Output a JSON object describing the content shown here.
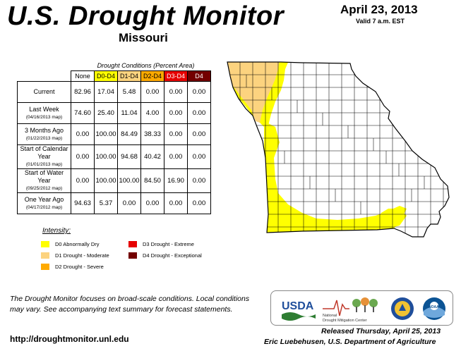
{
  "header": {
    "title": "U.S. Drought Monitor",
    "state": "Missouri",
    "date": "April 23, 2013",
    "valid": "Valid 7 a.m. EST"
  },
  "table": {
    "caption": "Drought Conditions (Percent Area)",
    "columns": [
      "None",
      "D0-D4",
      "D1-D4",
      "D2-D4",
      "D3-D4",
      "D4"
    ],
    "column_colors": [
      "#ffffff",
      "#ffff00",
      "#fcd37f",
      "#ffaa00",
      "#e60000",
      "#730000"
    ],
    "column_text_colors": [
      "#000000",
      "#000000",
      "#000000",
      "#000000",
      "#ffffff",
      "#ffffff"
    ],
    "rows": [
      {
        "label": "Current",
        "sub": "",
        "values": [
          "82.96",
          "17.04",
          "5.48",
          "0.00",
          "0.00",
          "0.00"
        ]
      },
      {
        "label": "Last Week",
        "sub": "(04/16/2013 map)",
        "values": [
          "74.60",
          "25.40",
          "11.04",
          "4.00",
          "0.00",
          "0.00"
        ]
      },
      {
        "label": "3 Months Ago",
        "sub": "(01/22/2013 map)",
        "values": [
          "0.00",
          "100.00",
          "84.49",
          "38.33",
          "0.00",
          "0.00"
        ]
      },
      {
        "label": "Start of Calendar Year",
        "sub": "(01/01/2013 map)",
        "values": [
          "0.00",
          "100.00",
          "94.68",
          "40.42",
          "0.00",
          "0.00"
        ]
      },
      {
        "label": "Start of Water Year",
        "sub": "(09/25/2012 map)",
        "values": [
          "0.00",
          "100.00",
          "100.00",
          "84.50",
          "16.90",
          "0.00"
        ]
      },
      {
        "label": "One Year Ago",
        "sub": "(04/17/2012 map)",
        "values": [
          "94.63",
          "5.37",
          "0.00",
          "0.00",
          "0.00",
          "0.00"
        ]
      }
    ]
  },
  "legend": {
    "title": "Intensity:",
    "items": [
      {
        "label": "D0 Abnormally Dry",
        "color": "#ffff00"
      },
      {
        "label": "D1 Drought - Moderate",
        "color": "#fcd37f"
      },
      {
        "label": "D2 Drought - Severe",
        "color": "#ffaa00"
      },
      {
        "label": "D3 Drought - Extreme",
        "color": "#e60000"
      },
      {
        "label": "D4 Drought - Exceptional",
        "color": "#730000"
      }
    ]
  },
  "footer": {
    "note": "The Drought Monitor focuses on broad-scale conditions. Local conditions may vary. See accompanying text summary for forecast statements.",
    "url": "http://droughtmonitor.unl.edu",
    "released": "Released Thursday, April 25, 2013",
    "author": "Eric Luebehusen, U.S. Department of Agriculture"
  },
  "logos": {
    "usda": "USDA",
    "ndmc_line1": "National",
    "ndmc_line2": "Drought Mitigation Center",
    "noaa": "NOAA"
  },
  "map": {
    "state_outline_color": "#000000",
    "county_line_color": "#000000",
    "regions": [
      {
        "category": "D0",
        "color": "#ffff00",
        "location": "western border and southern tier"
      },
      {
        "category": "D1",
        "color": "#fcd37f",
        "location": "northwest corner"
      }
    ]
  }
}
